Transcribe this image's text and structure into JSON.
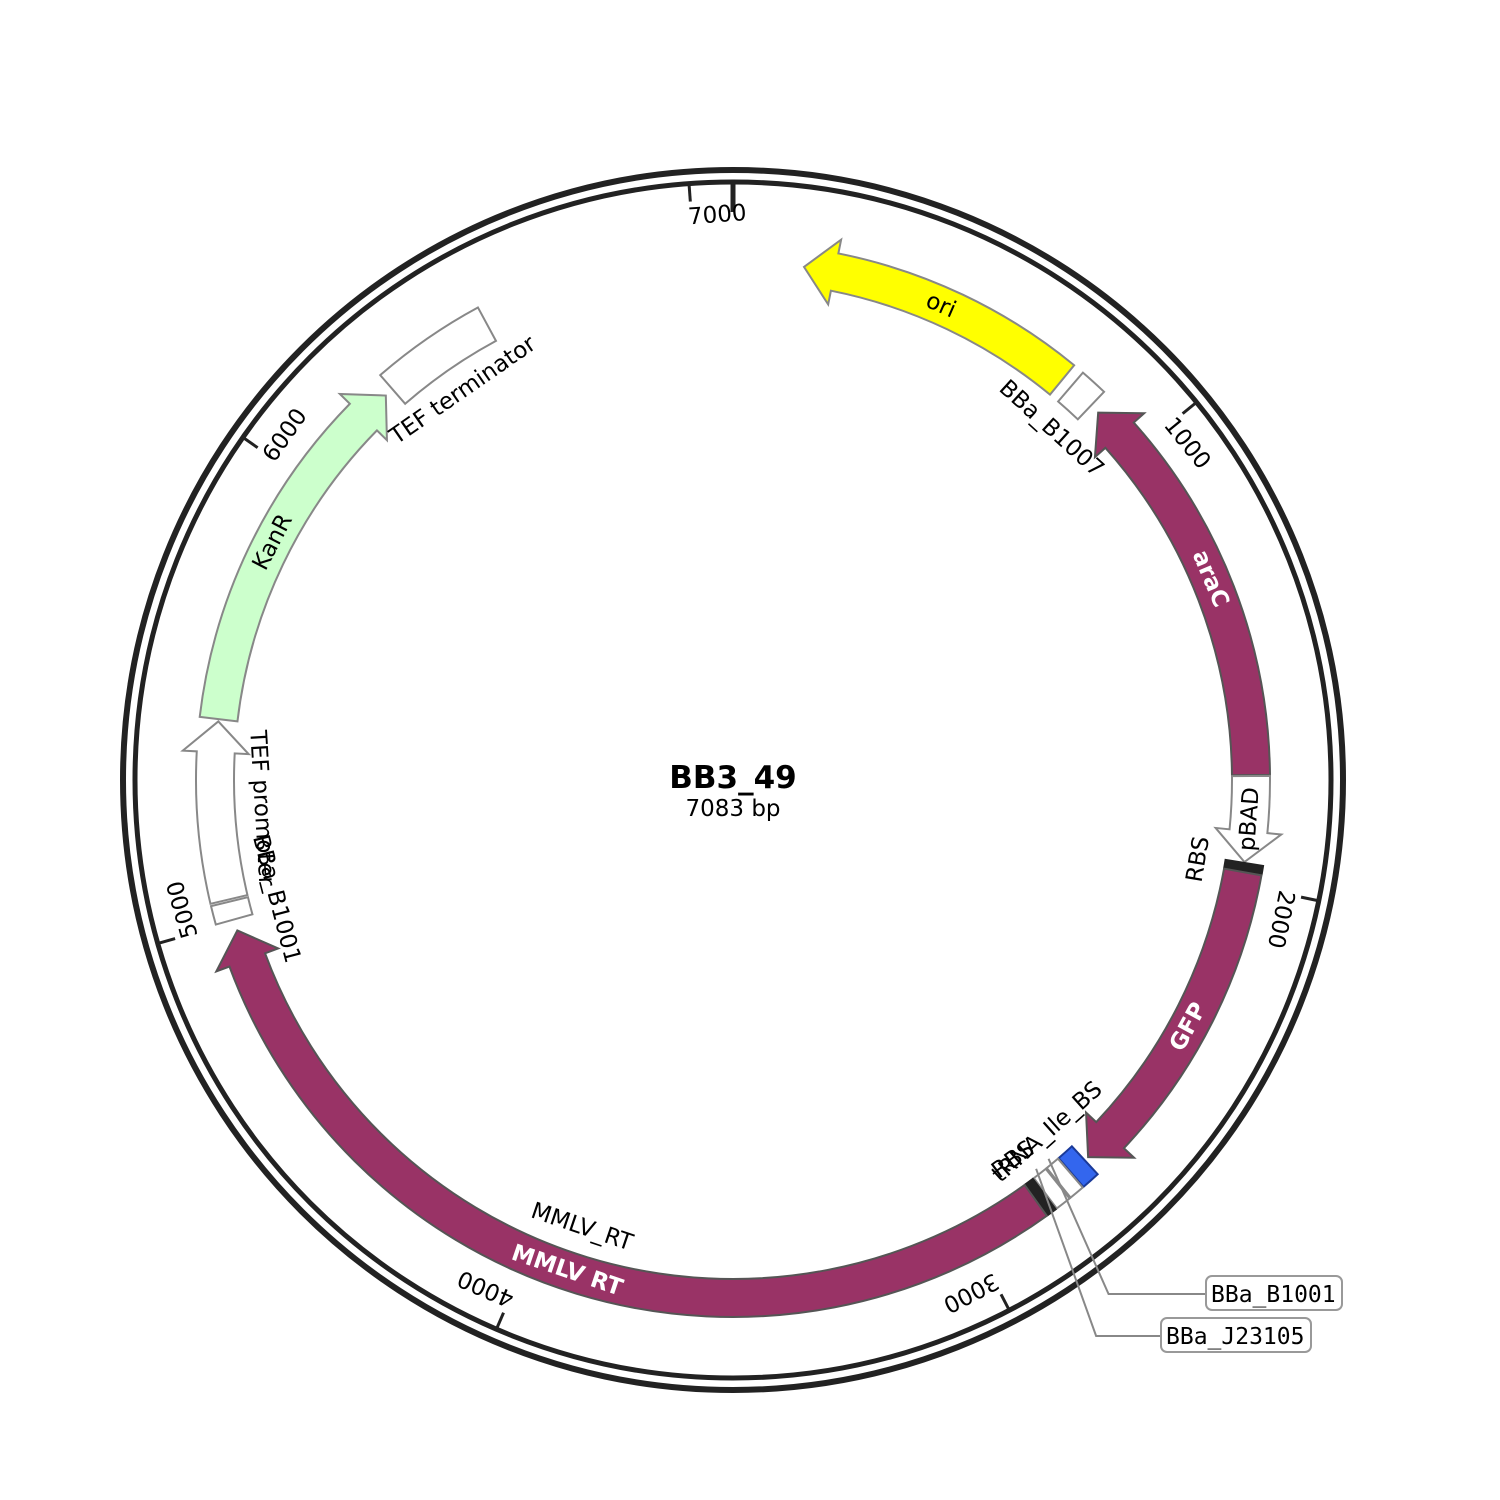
{
  "plasmid": {
    "name": "BB3_49",
    "size_label": "7083 bp",
    "length_bp": 7083
  },
  "ticks": [
    {
      "bp": 1000,
      "label": "1000"
    },
    {
      "bp": 2000,
      "label": "2000"
    },
    {
      "bp": 3000,
      "label": "3000"
    },
    {
      "bp": 4000,
      "label": "4000"
    },
    {
      "bp": 5000,
      "label": "5000"
    },
    {
      "bp": 6000,
      "label": "6000"
    },
    {
      "bp": 7000,
      "label": "7000"
    }
  ],
  "features": [
    {
      "id": "ori",
      "label": "ori",
      "start": 155,
      "end": 776,
      "direction": "reverse",
      "fill": "#ffff00",
      "stroke": "#888888",
      "label_inside": true
    },
    {
      "id": "bba-b1007",
      "label": "BBa_B1007",
      "start": 800,
      "end": 860,
      "direction": "none",
      "fill": "#ffffff",
      "stroke": "#888888"
    },
    {
      "id": "arac",
      "label": "araC",
      "start": 882,
      "end": 1760,
      "direction": "reverse",
      "fill": "#993366",
      "stroke": "#555555",
      "label_inside": true
    },
    {
      "id": "pbad",
      "label": "pBAD",
      "start": 1762,
      "end": 1950,
      "direction": "forward",
      "fill": "#ffffff",
      "stroke": "#888888",
      "label_inside": true
    },
    {
      "id": "rbs-1",
      "label": "RBS",
      "start": 1952,
      "end": 1970,
      "direction": "none",
      "fill": "#222222",
      "stroke": "#222222"
    },
    {
      "id": "gfp",
      "label": "GFP",
      "start": 1972,
      "end": 2690,
      "direction": "forward",
      "fill": "#993366",
      "stroke": "#555555",
      "label_inside": true
    },
    {
      "id": "trna-ile-bs",
      "label": "tRNA_Ile_BS",
      "start": 2700,
      "end": 2740,
      "direction": "none",
      "fill": "#3366ee",
      "stroke": "#1a3a99"
    },
    {
      "id": "bba-b1001-a",
      "label": "BBa_B1001",
      "start": 2742,
      "end": 2775,
      "direction": "none",
      "fill": "#ffffff",
      "stroke": "#888888"
    },
    {
      "id": "bba-j23105",
      "label": "BBa_J23105",
      "start": 2778,
      "end": 2812,
      "direction": "none",
      "fill": "#ffffff",
      "stroke": "#888888"
    },
    {
      "id": "rbs-2",
      "label": "RBS",
      "start": 2815,
      "end": 2835,
      "direction": "none",
      "fill": "#222222",
      "stroke": "#222222"
    },
    {
      "id": "mmlv-rt",
      "label": "MMLV_RT",
      "inner_label": "MMLV RT",
      "start": 2838,
      "end": 4980,
      "direction": "forward",
      "fill": "#993366",
      "stroke": "#555555",
      "label_inside": true
    },
    {
      "id": "bba-b1001-b",
      "label": "BBa_B1001",
      "start": 5005,
      "end": 5045,
      "direction": "none",
      "fill": "#ffffff",
      "stroke": "#888888"
    },
    {
      "id": "tef-promoter",
      "label": "TEF promoter",
      "start": 5050,
      "end": 5440,
      "direction": "forward",
      "fill": "#ffffff",
      "stroke": "#888888"
    },
    {
      "id": "kanr",
      "label": "KanR",
      "start": 5445,
      "end": 6255,
      "direction": "forward",
      "fill": "#ccffcc",
      "stroke": "#888888",
      "label_inside": true
    },
    {
      "id": "tef-terminator",
      "label": "TEF terminator",
      "start": 6275,
      "end": 6525,
      "direction": "none",
      "fill": "#ffffff",
      "stroke": "#888888"
    }
  ],
  "callouts": [
    {
      "feature": "bba-b1001-a",
      "label": "BBa_B1001"
    },
    {
      "feature": "bba-j23105",
      "label": "BBa_J23105"
    }
  ]
}
